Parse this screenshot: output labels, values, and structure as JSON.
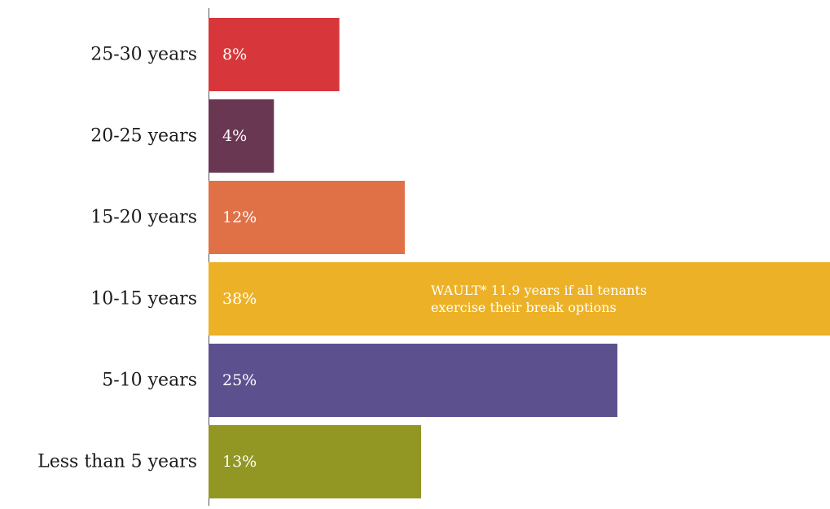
{
  "chart_data": {
    "type": "bar",
    "orientation": "horizontal",
    "categories": [
      "25-30 years",
      "20-25 years",
      "15-20 years",
      "10-15 years",
      "5-10 years",
      "Less than 5 years"
    ],
    "values": [
      8,
      4,
      12,
      38,
      25,
      13
    ],
    "value_labels": [
      "8%",
      "4%",
      "12%",
      "38%",
      "25%",
      "13%"
    ],
    "colors": [
      "#d7373a",
      "#6a3753",
      "#e07046",
      "#ecb126",
      "#5d508f",
      "#929723"
    ],
    "xlim": [
      0,
      38
    ],
    "grid": false,
    "legend": "none",
    "annotation": {
      "category": "10-15 years",
      "lines": [
        "WAULT* 11.9 years if all tenants",
        "exercise their break options"
      ]
    }
  }
}
